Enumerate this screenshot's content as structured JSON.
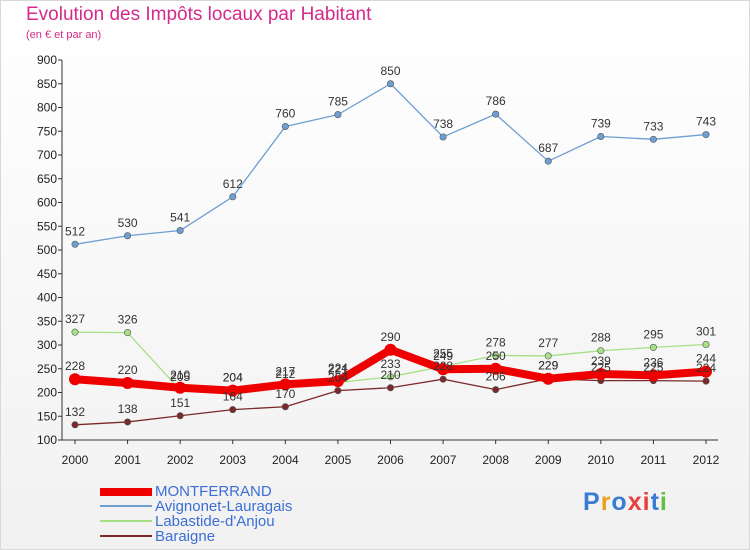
{
  "title": "Evolution des Impôts locaux par Habitant",
  "subtitle": "(en € et par an)",
  "logo": {
    "letters": [
      "P",
      "r",
      "o",
      "x",
      "i",
      "t",
      "i"
    ],
    "colors": [
      "#3a7bd5",
      "#e8a020",
      "#3a7bd5",
      "#e84040",
      "#e84040",
      "#3a7bd5",
      "#60c040"
    ]
  },
  "chart_data": {
    "type": "line",
    "x": [
      "2000",
      "2001",
      "2002",
      "2003",
      "2004",
      "2005",
      "2006",
      "2007",
      "2008",
      "2009",
      "2010",
      "2011",
      "2012"
    ],
    "ylim": [
      100,
      900
    ],
    "yticks": [
      100,
      150,
      200,
      250,
      300,
      350,
      400,
      450,
      500,
      550,
      600,
      650,
      700,
      750,
      800,
      850,
      900
    ],
    "grid": false,
    "legend_position": "bottom-left",
    "series": [
      {
        "name": "MONTFERRAND",
        "color": "#ee0000",
        "values": [
          228,
          220,
          210,
          204,
          217,
          224,
          290,
          249,
          250,
          229,
          239,
          236,
          244
        ]
      },
      {
        "name": "Avignonet-Lauragais",
        "color": "#6e9fd3",
        "values": [
          512,
          530,
          541,
          612,
          760,
          785,
          850,
          738,
          786,
          687,
          739,
          733,
          743
        ]
      },
      {
        "name": "Labastide-d'Anjou",
        "color": "#a7e085",
        "values": [
          327,
          326,
          205,
          204,
          212,
          221,
          233,
          255,
          278,
          277,
          288,
          295,
          301
        ]
      },
      {
        "name": "Baraigne",
        "color": "#7a2a2a",
        "values": [
          132,
          138,
          151,
          164,
          170,
          204,
          210,
          228,
          206,
          229,
          225,
          225,
          224
        ]
      }
    ]
  }
}
